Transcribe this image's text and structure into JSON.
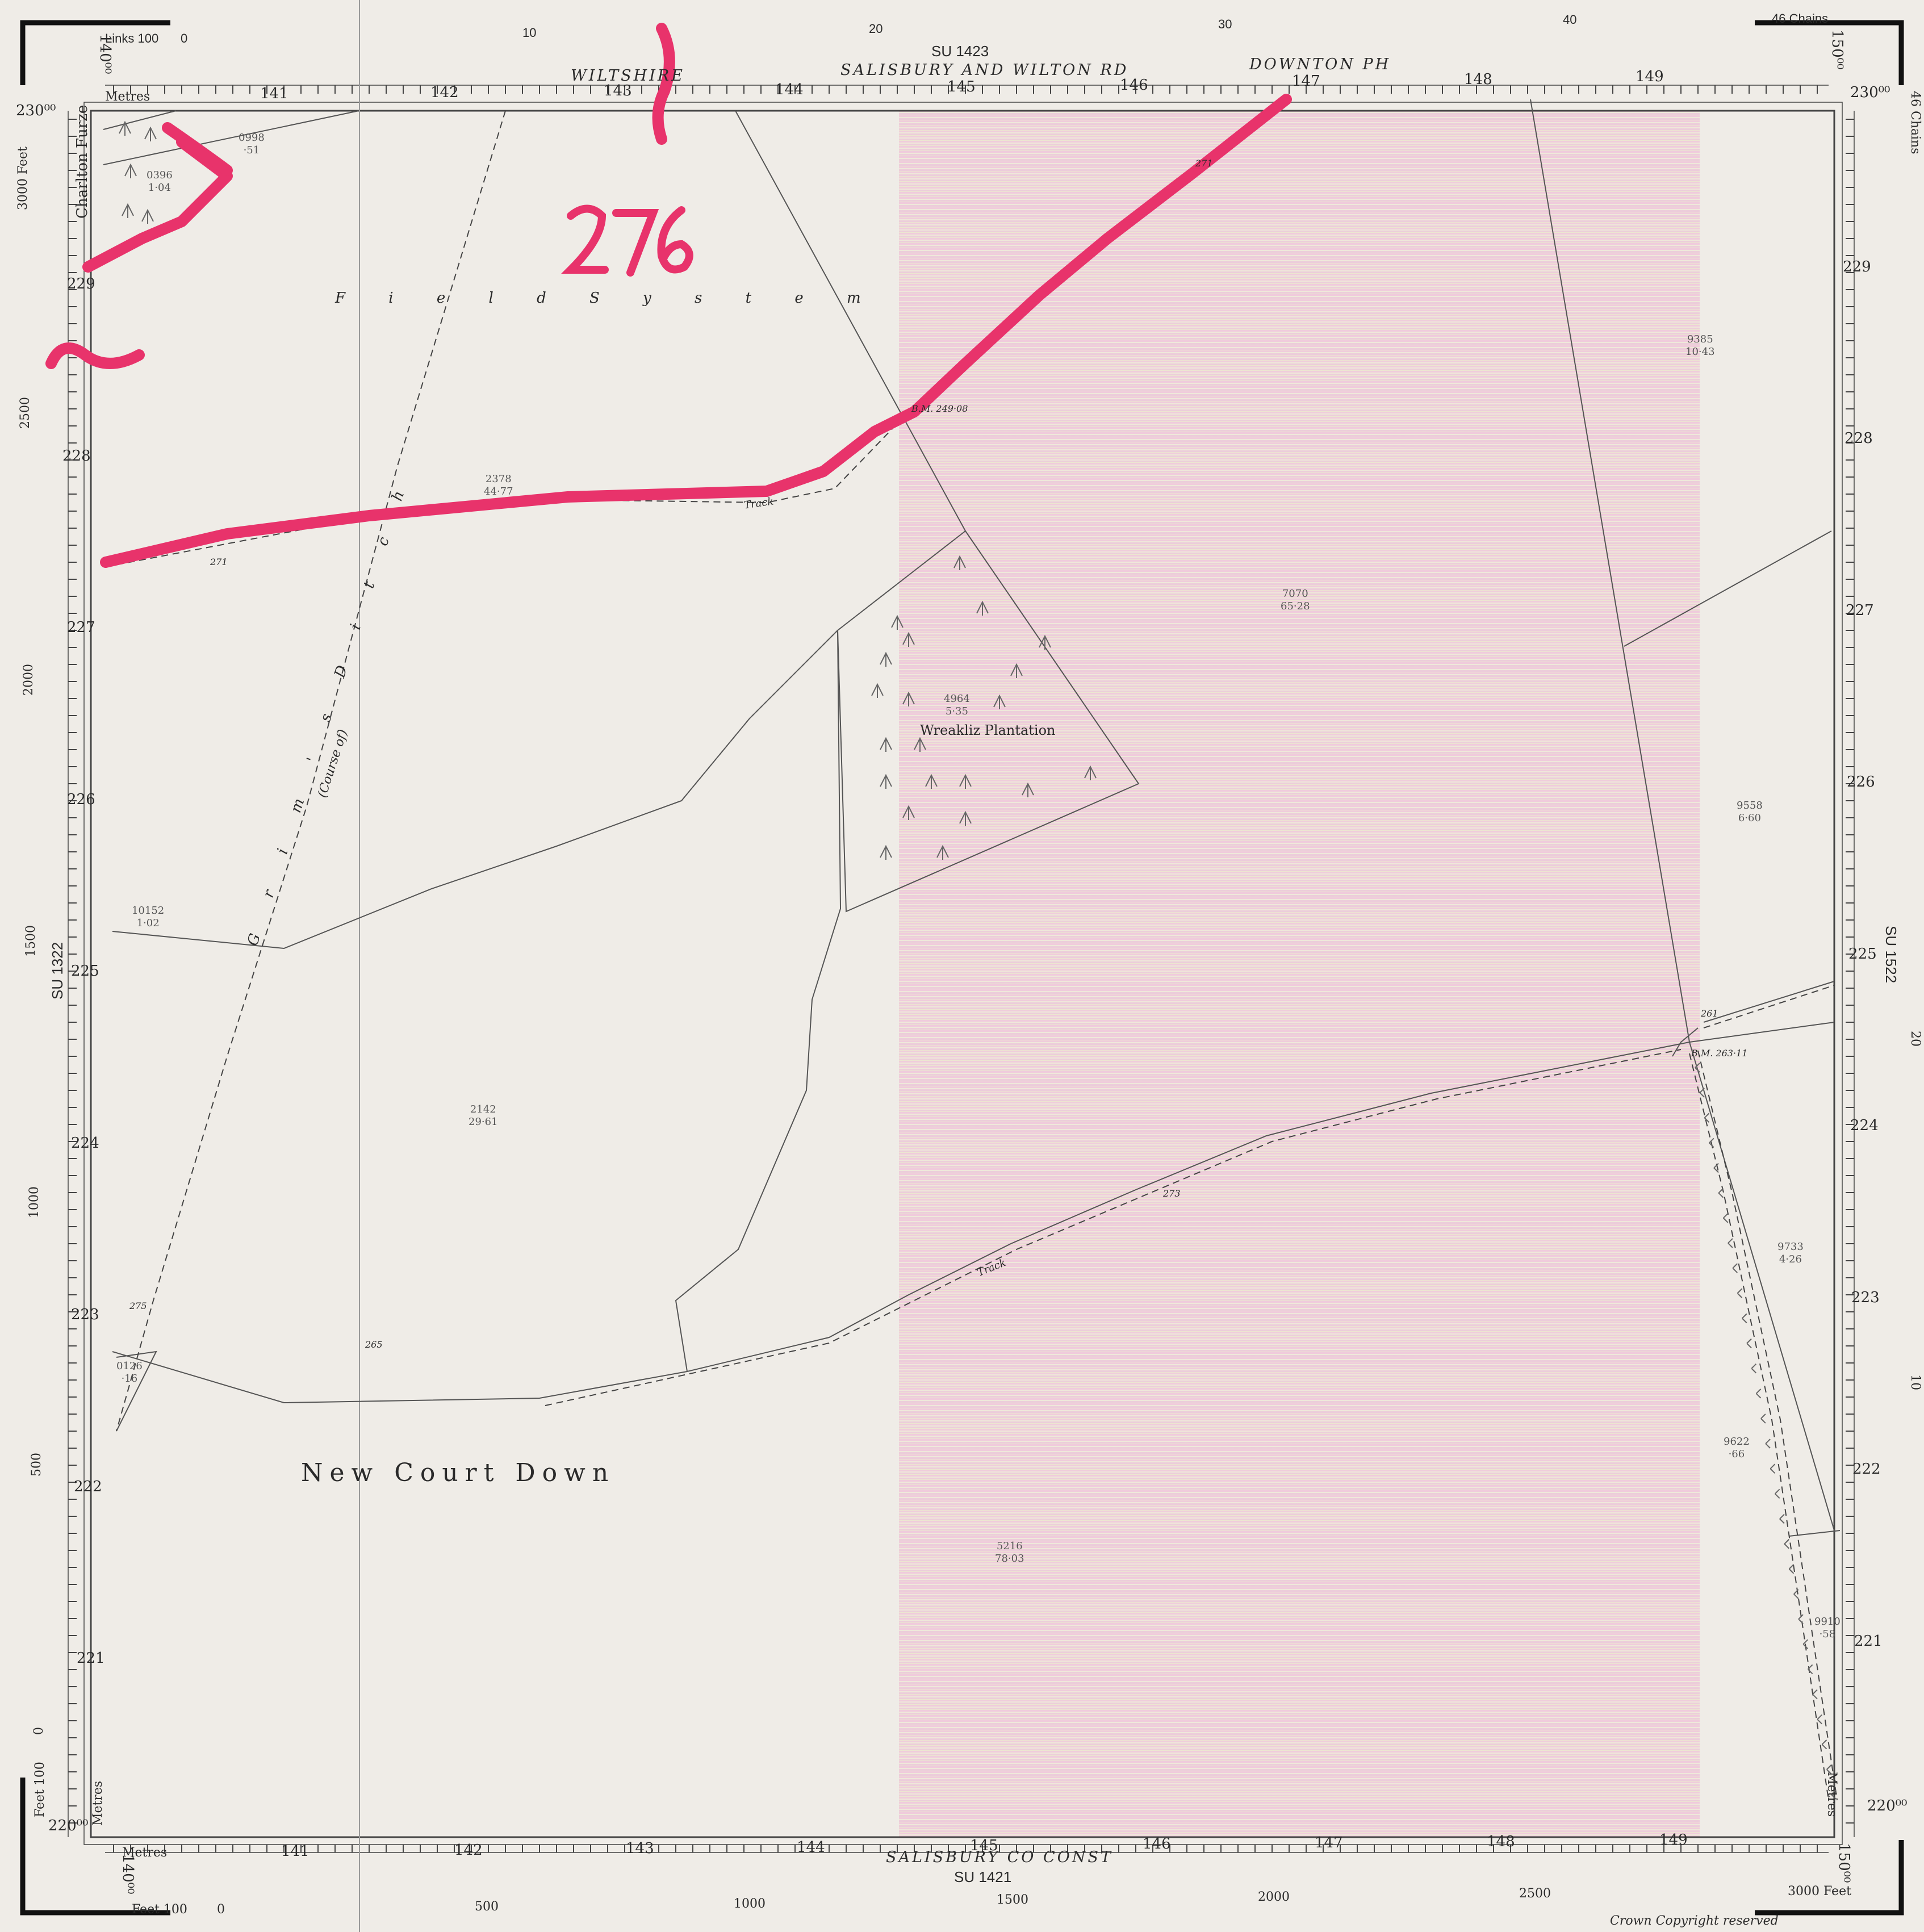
{
  "top": {
    "chains_scale": [
      "Links 100",
      "0",
      "10",
      "20",
      "30",
      "40",
      "46 Chains"
    ],
    "metres_label": "Metres",
    "easting_ticks": [
      "141",
      "142",
      "143",
      "144",
      "145",
      "146",
      "147",
      "148",
      "149"
    ],
    "corner_left": "140⁰⁰",
    "corner_right": "150⁰⁰",
    "northing_top_left": "230⁰⁰",
    "northing_top_right": "230⁰⁰",
    "county": "WILTSHIRE",
    "sheet": "SU 1423",
    "authority": "SALISBURY AND WILTON RD",
    "parish": "DOWNTON PH"
  },
  "bottom": {
    "metres_label": "Metres",
    "easting_ticks": [
      "141",
      "142",
      "143",
      "144",
      "145",
      "146",
      "147",
      "148",
      "149"
    ],
    "feet_scale": [
      "Feet 100",
      "0",
      "500",
      "1000",
      "1500",
      "2000",
      "2500",
      "3000 Feet"
    ],
    "corner_left": "140⁰⁰",
    "corner_right": "150⁰⁰",
    "northing_bottom_left": "220⁰⁰",
    "northing_bottom_right": "220⁰⁰",
    "authority": "SALISBURY CO CONST",
    "sheet": "SU 1421",
    "copyright": "Crown Copyright reserved"
  },
  "left": {
    "northing_ticks": [
      "229",
      "228",
      "227",
      "226",
      "225",
      "224",
      "223",
      "222",
      "221"
    ],
    "feet_scale": [
      "3000 Feet",
      "2500",
      "2000",
      "1500",
      "1000",
      "500",
      "0",
      "Feet 100"
    ],
    "sheet": "SU 1322",
    "metres_label": "Metres"
  },
  "right": {
    "northing_ticks": [
      "229",
      "228",
      "227",
      "226",
      "225",
      "224",
      "223",
      "222",
      "221"
    ],
    "chains_scale": [
      "46 Chains",
      "20",
      "10"
    ],
    "sheet": "SU 1522",
    "metres_label": "Metres"
  },
  "place_names": {
    "charlton_furze": "Charlton Furze",
    "field_system": "F i e l d   S y s t e m",
    "grims_ditch": "G r i m ' s   D i t c h",
    "course_of": "(Course of)",
    "wreakliz": "Wreakliz Plantation",
    "new_court_down": "New Court Down",
    "track_1": "Track",
    "track_2": "Track"
  },
  "parcels": [
    {
      "id": "0998",
      "area": "·51"
    },
    {
      "id": "0396",
      "area": "1·04"
    },
    {
      "id": "2378",
      "area": "44·77"
    },
    {
      "id": "9385",
      "area": "10·43"
    },
    {
      "id": "7070",
      "area": "65·28"
    },
    {
      "id": "4964",
      "area": "5·35"
    },
    {
      "id": "9558",
      "area": "6·60"
    },
    {
      "id": "10152",
      "area": "1·02"
    },
    {
      "id": "2142",
      "area": "29·61"
    },
    {
      "id": "9733",
      "area": "4·26"
    },
    {
      "id": "0126",
      "area": "·16"
    },
    {
      "id": "9622",
      "area": "·66"
    },
    {
      "id": "5216",
      "area": "78·03"
    },
    {
      "id": "9910",
      "area": "·58"
    }
  ],
  "spot_heights": [
    "271",
    "271",
    "275",
    "265",
    "273",
    "261"
  ],
  "benchmarks": [
    "B.M. 249·08",
    "B.M. 263·11"
  ],
  "annotation": {
    "handwritten_number": "276",
    "colour": "#e8336b"
  },
  "colors": {
    "paper": "#efece7",
    "lines": "#555555",
    "highlighter": "#e8336b",
    "pink_band": "#ecc8d8"
  }
}
